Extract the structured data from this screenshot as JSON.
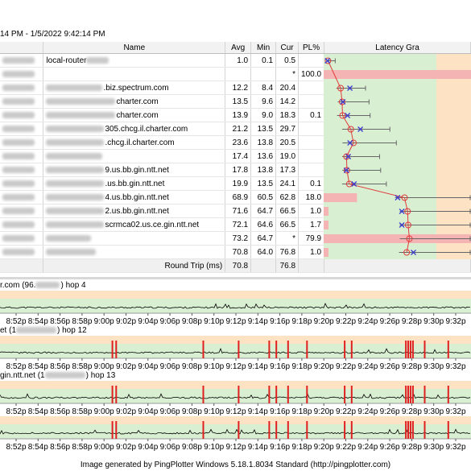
{
  "header": {
    "date_range": "14 PM - 1/5/2022 9:42:14 PM"
  },
  "table": {
    "columns": [
      "Name",
      "Avg",
      "Min",
      "Cur",
      "PL%",
      "Latency Gra"
    ],
    "rows": [
      {
        "name": "local-router",
        "avg": "1.0",
        "min": "0.1",
        "cur": "0.5",
        "pl": "",
        "blur": 28
      },
      {
        "name": "",
        "avg": "",
        "min": "",
        "cur": "*",
        "pl": "100.0",
        "blur": 0
      },
      {
        "name": ".biz.spectrum.com",
        "avg": "12.2",
        "min": "8.4",
        "cur": "20.4",
        "pl": "",
        "blur": 70
      },
      {
        "name": "charter.com",
        "avg": "13.5",
        "min": "9.6",
        "cur": "14.2",
        "pl": "",
        "blur": 86
      },
      {
        "name": "charter.com",
        "avg": "13.9",
        "min": "9.0",
        "cur": "18.3",
        "pl": "0.1",
        "blur": 86
      },
      {
        "name": "305.chcg.il.charter.com",
        "avg": "21.2",
        "min": "13.5",
        "cur": "29.7",
        "pl": "",
        "blur": 72
      },
      {
        "name": ".chcg.il.charter.com",
        "avg": "23.6",
        "min": "13.8",
        "cur": "20.5",
        "pl": "",
        "blur": 72
      },
      {
        "name": "",
        "avg": "17.4",
        "min": "13.6",
        "cur": "19.0",
        "pl": "",
        "blur": 70
      },
      {
        "name": "9.us.bb.gin.ntt.net",
        "avg": "17.8",
        "min": "13.8",
        "cur": "17.3",
        "pl": "",
        "blur": 72
      },
      {
        "name": ".us.bb.gin.ntt.net",
        "avg": "19.9",
        "min": "13.5",
        "cur": "24.1",
        "pl": "0.1",
        "blur": 72
      },
      {
        "name": "4.us.bb.gin.ntt.net",
        "avg": "68.9",
        "min": "60.5",
        "cur": "62.8",
        "pl": "18.0",
        "blur": 72
      },
      {
        "name": "2.us.bb.gin.ntt.net",
        "avg": "71.6",
        "min": "64.7",
        "cur": "66.5",
        "pl": "1.0",
        "blur": 72
      },
      {
        "name": "scrmca02.us.ce.gin.ntt.net",
        "avg": "72.1",
        "min": "64.6",
        "cur": "66.5",
        "pl": "1.7",
        "blur": 72
      },
      {
        "name": "",
        "avg": "73.2",
        "min": "64.7",
        "cur": "*",
        "pl": "79.9",
        "blur": 56
      },
      {
        "name": "",
        "avg": "70.8",
        "min": "64.0",
        "cur": "76.8",
        "pl": "1.0",
        "blur": 62
      }
    ],
    "round_trip": {
      "label": "Round Trip (ms)",
      "avg": "70.8",
      "cur": "76.8"
    }
  },
  "timelines": {
    "hop4_label_a": "r.com (96.",
    "hop4_label_b": ") hop 4",
    "hop12_label_a": "et (1",
    "hop12_label_b": ") hop 12",
    "hop13_label_a": "gin.ntt.net (1",
    "hop13_label_b": ") hop 13",
    "time_ticks": [
      "8:52p",
      "8:54p",
      "8:56p",
      "8:58p",
      "9:00p",
      "9:02p",
      "9:04p",
      "9:06p",
      "9:08p",
      "9:10p",
      "9:12p",
      "9:14p",
      "9:16p",
      "9:18p",
      "9:20p",
      "9:22p",
      "9:24p",
      "9:26p",
      "9:28p",
      "9:30p",
      "9:32p"
    ],
    "loss_marks": [
      0.237,
      0.245,
      0.43,
      0.505,
      0.57,
      0.585,
      0.61,
      0.65,
      0.73,
      0.745,
      0.86,
      0.865,
      0.87,
      0.875,
      0.9,
      0.95
    ]
  },
  "latency_graph": {
    "avg": [
      1.0,
      null,
      12.2,
      13.5,
      13.9,
      21.2,
      23.6,
      17.4,
      17.8,
      19.9,
      68.9,
      71.6,
      72.1,
      73.2,
      70.8
    ],
    "cur": [
      0.5,
      null,
      20.4,
      14.2,
      18.3,
      29.7,
      20.5,
      19.0,
      17.3,
      24.1,
      62.8,
      66.5,
      66.5,
      null,
      76.8
    ],
    "min": [
      0.1,
      null,
      8.4,
      9.6,
      9.0,
      13.5,
      13.8,
      13.6,
      13.8,
      13.5,
      60.5,
      64.7,
      64.6,
      64.7,
      64.0
    ],
    "pl": [
      0,
      100,
      0,
      0,
      0.1,
      0,
      0,
      0,
      0,
      0.1,
      18.0,
      1.0,
      1.7,
      79.9,
      1.0
    ],
    "colors": {
      "green": "#d9efd2",
      "orange": "#fde3c4",
      "loss": "#f4b4b4",
      "line": "#e03c3c",
      "marker": "#3b3bd0"
    }
  },
  "footer": "Image generated by PingPlotter Windows 5.18.1.8034 Standard (http://pingplotter.com)"
}
